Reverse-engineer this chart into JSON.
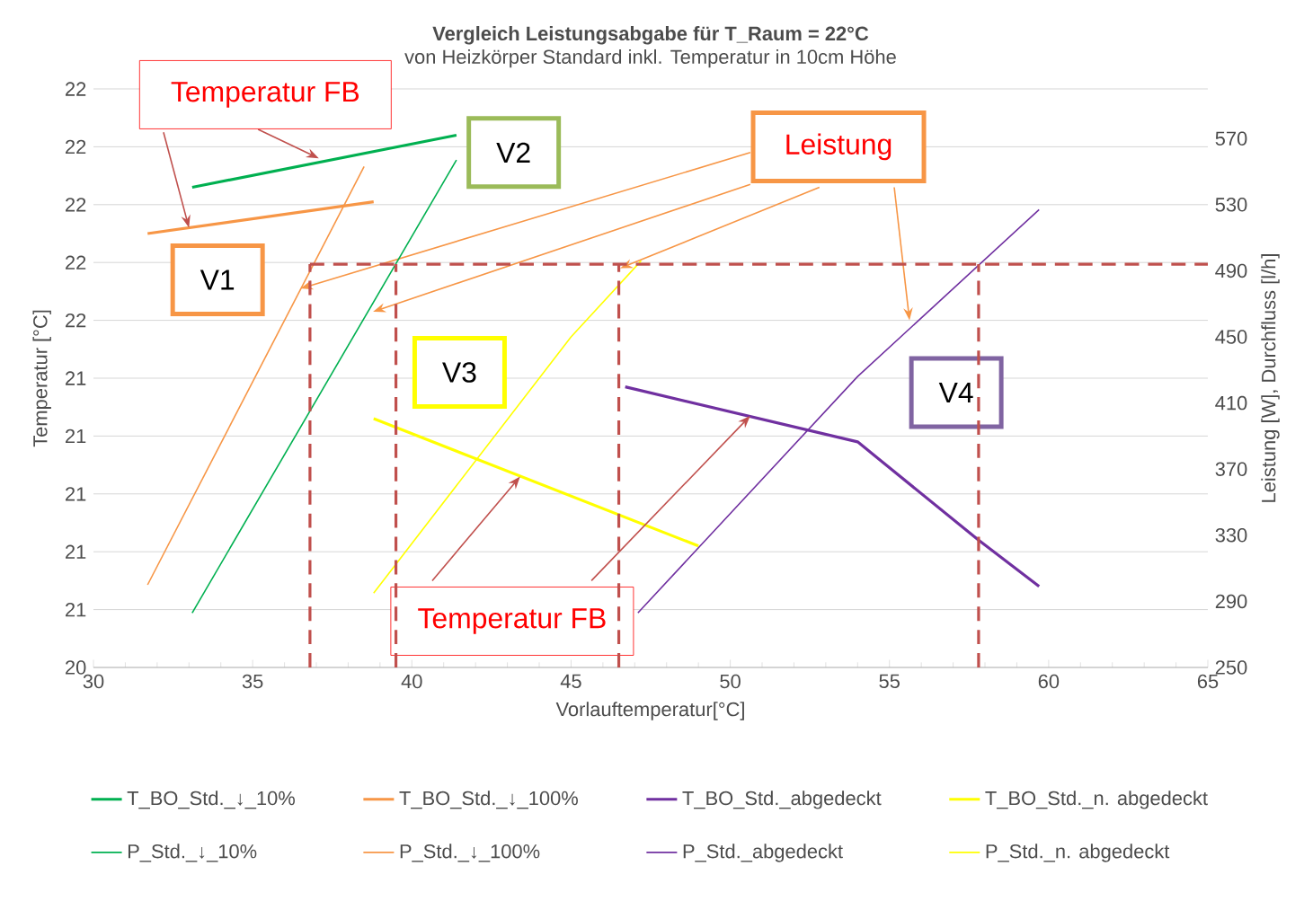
{
  "chart_data": {
    "type": "line",
    "title": "Vergleich Leistungsabgabe für T_Raum = 22°C",
    "subtitle": "von Heizkörper Standard inkl. Temperatur in 10cm Höhe",
    "xlabel": "Vorlauftemperatur[°C]",
    "ylabel": "Temperatur [°C]",
    "y2label": "Leistung [W], Durchfluss [l/h]",
    "xlim": [
      30,
      65
    ],
    "xticks": [
      30,
      35,
      40,
      45,
      50,
      55,
      60,
      65
    ],
    "ylim": [
      20.4,
      22.4
    ],
    "yticks": [
      {
        "value": 20.4,
        "label": "20"
      },
      {
        "value": 20.6,
        "label": "21"
      },
      {
        "value": 20.8,
        "label": "21"
      },
      21,
      {
        "value": 21.2,
        "label": "21"
      },
      {
        "value": 21.4,
        "label": "21"
      },
      {
        "value": 21.6,
        "label": "22"
      },
      {
        "value": 21.8,
        "label": "22"
      },
      22,
      {
        "value": 22.2,
        "label": "22"
      },
      {
        "value": 22.4,
        "label": "22"
      }
    ],
    "y2lim": [
      250,
      600
    ],
    "y2ticks": [
      250,
      290,
      330,
      370,
      410,
      450,
      490,
      530,
      570
    ],
    "grid": "y",
    "legend": "bottom",
    "marker": "none",
    "series": [
      {
        "name": "T_BO_Std._↓_10%",
        "color": "#00b050",
        "x": [
          33.1,
          41.4
        ],
        "values": [
          22.06,
          22.24
        ]
      },
      {
        "name": "T_BO_Std._↓_100%",
        "color": "#f79646",
        "x": [
          31.7,
          38.8
        ],
        "values": [
          21.9,
          22.01
        ]
      },
      {
        "name": "T_BO_Std._abgedeckt",
        "color": "#7030a0",
        "x": [
          46.7,
          54.0,
          57.8,
          59.7
        ],
        "values": [
          21.37,
          21.18,
          20.84,
          20.68
        ]
      },
      {
        "name": "T_BO_Std._n. abgedeckt",
        "color": "#ffff00",
        "x": [
          38.8,
          49.0
        ],
        "values": [
          21.26,
          20.82
        ]
      },
      {
        "name": "P_Std._↓_10%",
        "color": "#00b050",
        "axis": "y2",
        "x": [
          33.1,
          41.4
        ],
        "values": [
          283,
          557
        ]
      },
      {
        "name": "P_Std._↓_100%",
        "color": "#f79646",
        "axis": "y2",
        "x": [
          31.7,
          38.5
        ],
        "values": [
          300,
          553
        ]
      },
      {
        "name": "P_Std._abgedeckt",
        "color": "#7030a0",
        "axis": "y2",
        "x": [
          47.1,
          54.0,
          59.7
        ],
        "values": [
          283,
          426,
          527
        ]
      },
      {
        "name": "P_Std._n. abgedeckt",
        "color": "#ffff00",
        "axis": "y2",
        "x": [
          38.8,
          45.0,
          47.2
        ],
        "values": [
          295,
          450,
          496
        ]
      }
    ],
    "ref_lines": [
      {
        "axis": "y2",
        "value": 494,
        "color": "#c0504d",
        "line_style": "dashed"
      },
      {
        "axis": "x",
        "value": 36.8,
        "color": "#c0504d",
        "line_style": "dashed"
      },
      {
        "axis": "x",
        "value": 39.5,
        "color": "#c0504d",
        "line_style": "dashed"
      },
      {
        "axis": "x",
        "value": 46.5,
        "color": "#c0504d",
        "line_style": "dashed"
      },
      {
        "axis": "x",
        "value": 57.8,
        "color": "#c0504d",
        "line_style": "dashed"
      }
    ],
    "annotations": [
      {
        "text": "Temperatur FB",
        "x": 33.0,
        "y": 21.92
      },
      "V2",
      {
        "text": "Leistung",
        "x": 36.5,
        "y": 21.71
      },
      "V1",
      "V3",
      "V4",
      {
        "text": "Temperatur FB",
        "x": 43.4,
        "y": 21.06
      }
    ]
  }
}
